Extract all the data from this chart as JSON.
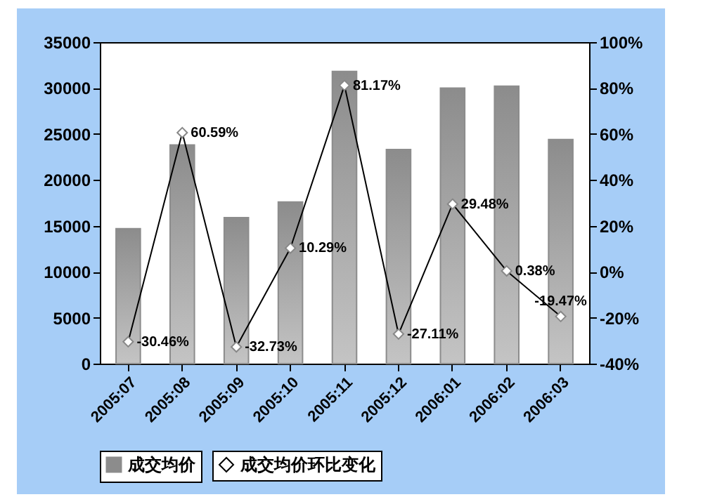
{
  "chart_data": {
    "type": "bar",
    "categories": [
      "2005:07",
      "2005:08",
      "2005:09",
      "2005:10",
      "2005:11",
      "2005:12",
      "2006:01",
      "2006:02",
      "2006:03"
    ],
    "series": [
      {
        "name": "成交均价",
        "color": "#8c8c8c",
        "values": [
          14700,
          23800,
          15900,
          17600,
          31800,
          23300,
          30000,
          30200,
          24400
        ]
      },
      {
        "name": "成交均价环比变化",
        "type": "line",
        "axis": "y2",
        "color": "#000000",
        "marker": "diamond",
        "line_style": "solid",
        "values": [
          -30.46,
          60.59,
          -32.73,
          10.29,
          81.17,
          -27.11,
          29.48,
          0.38,
          -19.47
        ],
        "value_labels": [
          "-30.46%",
          "60.59%",
          "-32.73%",
          "10.29%",
          "81.17%",
          "-27.11%",
          "29.48%",
          "0.38%",
          "-19.47%"
        ]
      }
    ],
    "ylim": [
      0,
      35000
    ],
    "yticks": [
      0,
      5000,
      10000,
      15000,
      20000,
      25000,
      30000,
      35000
    ],
    "y2lim": [
      -40,
      100
    ],
    "y2ticks": [
      {
        "value": -40,
        "label": "-40%"
      },
      {
        "value": -20,
        "label": "-20%"
      },
      {
        "value": 0,
        "label": "0%"
      },
      {
        "value": 20,
        "label": "20%"
      },
      {
        "value": 40,
        "label": "40%"
      },
      {
        "value": 60,
        "label": "60%"
      },
      {
        "value": 80,
        "label": "80%"
      },
      {
        "value": 100,
        "label": "100%"
      }
    ],
    "legend": "bottom",
    "grid": false
  }
}
